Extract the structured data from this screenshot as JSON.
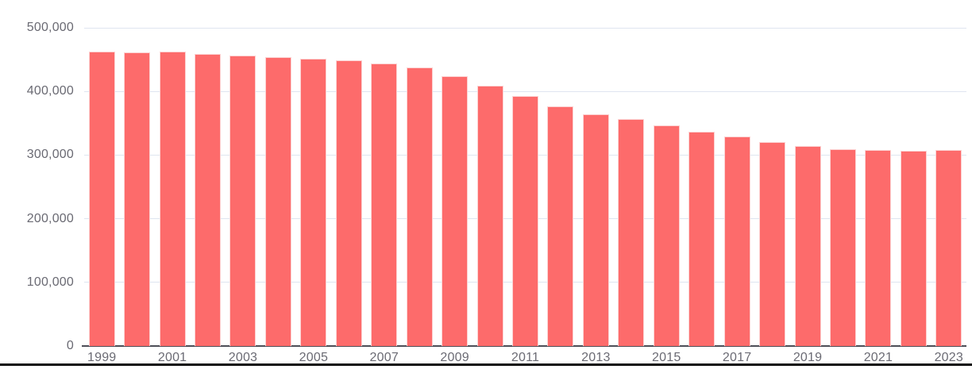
{
  "chart_data": {
    "type": "bar",
    "x": [
      1999,
      2000,
      2001,
      2002,
      2003,
      2004,
      2005,
      2006,
      2007,
      2008,
      2009,
      2010,
      2011,
      2012,
      2013,
      2014,
      2015,
      2016,
      2017,
      2018,
      2019,
      2020,
      2021,
      2022,
      2023
    ],
    "values": [
      463000,
      461500,
      462500,
      459000,
      456000,
      453500,
      451500,
      449000,
      444000,
      437500,
      423500,
      409500,
      393000,
      377000,
      364500,
      356000,
      347000,
      336500,
      329000,
      321000,
      314500,
      309500,
      308500,
      307000,
      308000
    ],
    "x_tick_labels": [
      "1999",
      "2001",
      "2003",
      "2005",
      "2007",
      "2009",
      "2011",
      "2013",
      "2015",
      "2017",
      "2019",
      "2021",
      "2023"
    ],
    "y_ticks": [
      0,
      100000,
      200000,
      300000,
      400000,
      500000
    ],
    "y_tick_labels": [
      "0",
      "100,000",
      "200,000",
      "300,000",
      "400,000",
      "500,000"
    ],
    "ylim": [
      0,
      500000
    ],
    "grid": "horizontal",
    "legend": "none",
    "title": "",
    "xlabel": "",
    "ylabel": ""
  },
  "colors": {
    "bar_fill": "#fd6b6b",
    "bar_border": "#fcd2d2",
    "gridline": "#dfe5f0",
    "axis_line": "#4d4e57",
    "tick_text": "#6a6a73",
    "bottom_divider": "#0b0b0b",
    "background": "#ffffff"
  }
}
